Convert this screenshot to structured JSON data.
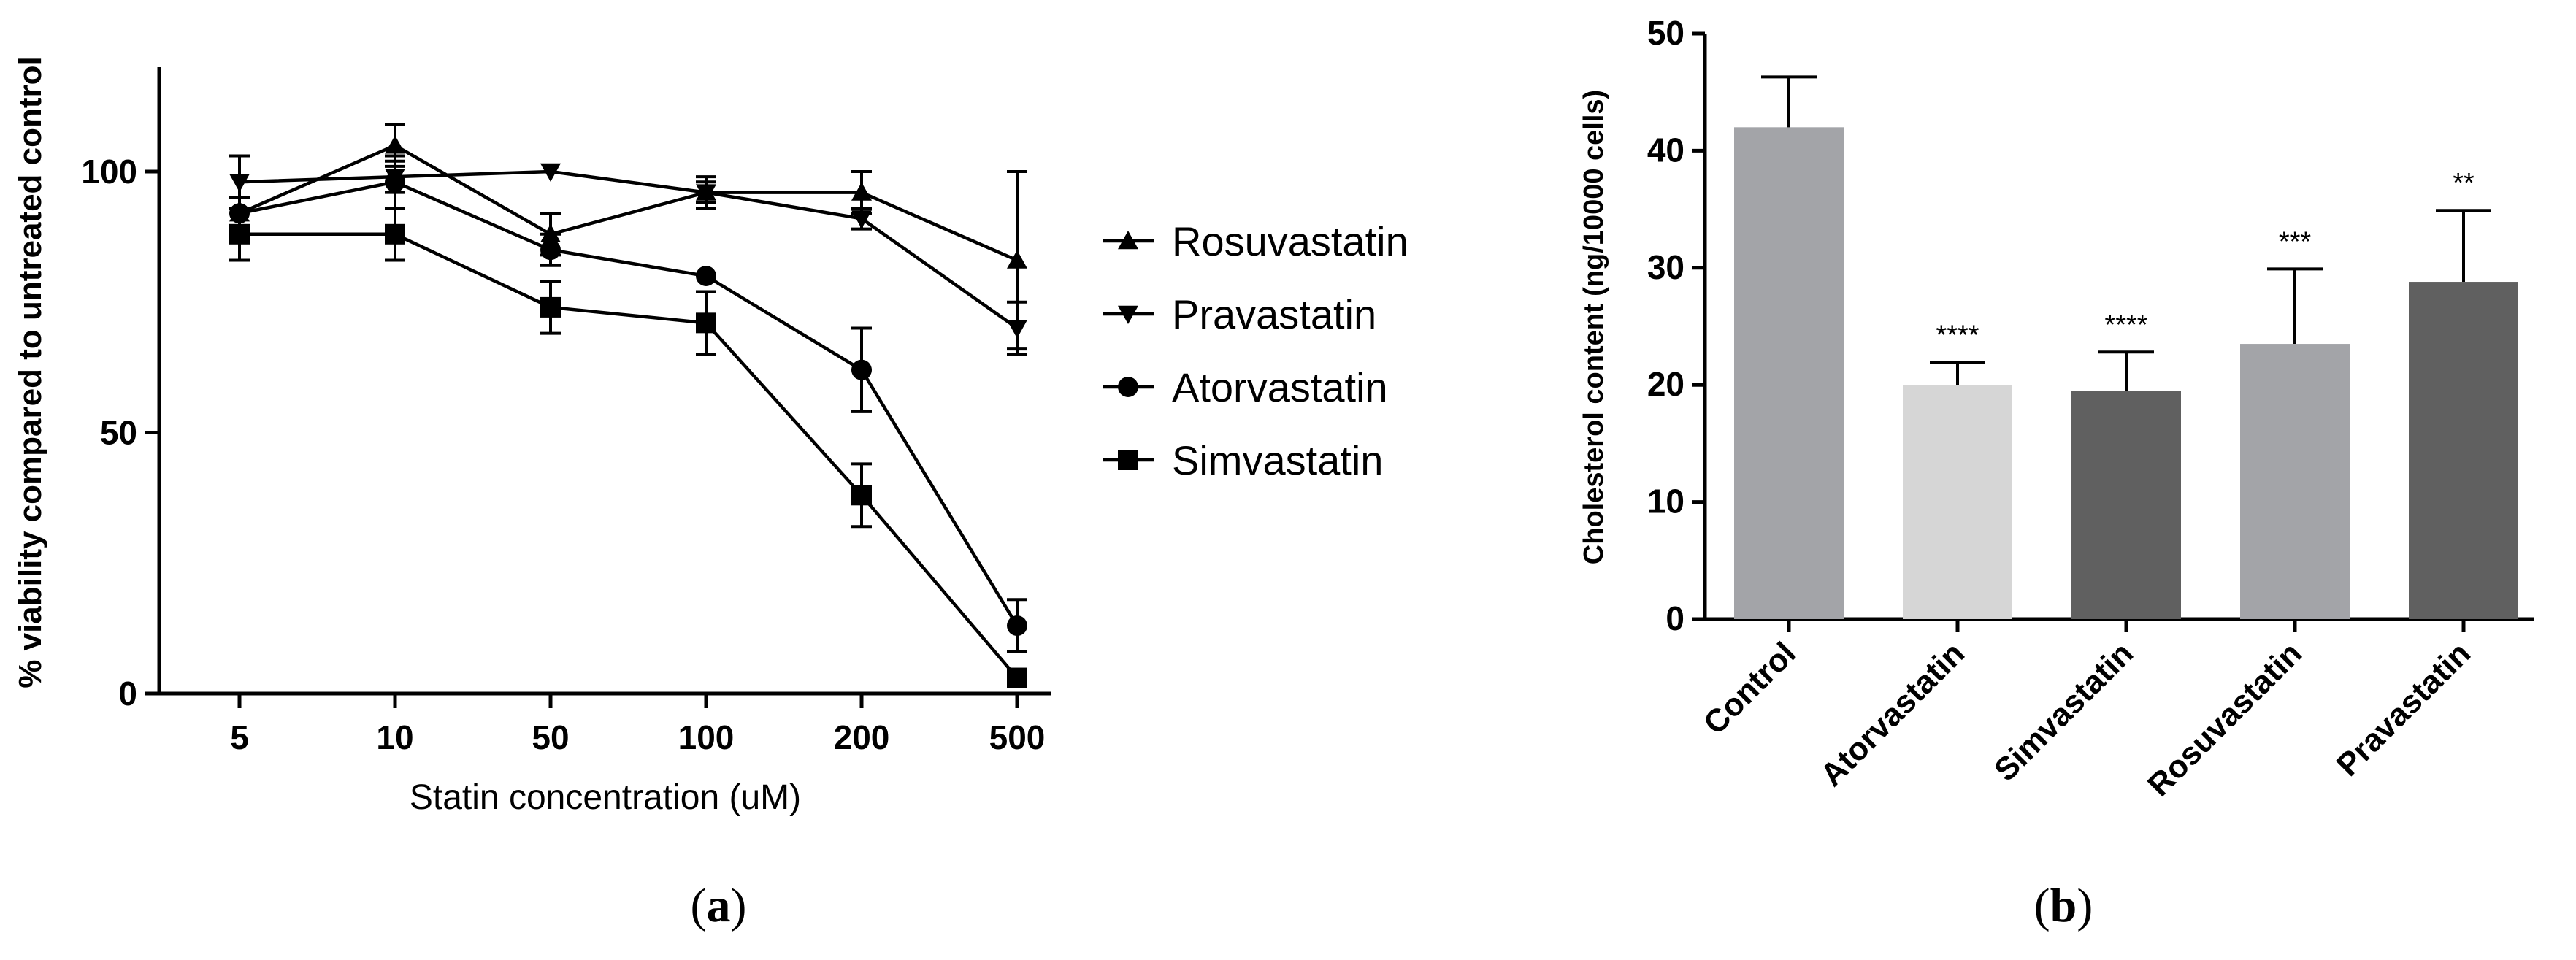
{
  "chart_data": [
    {
      "type": "line",
      "panel": "(a)",
      "panel_letter": "a",
      "xlabel": "Statin concentration (uM)",
      "ylabel": "% viability compared to untreated control",
      "categories": [
        "5",
        "10",
        "50",
        "100",
        "200",
        "500"
      ],
      "ylim": [
        0,
        120
      ],
      "yticks": [
        0,
        50,
        100
      ],
      "legend_position": "right",
      "series": [
        {
          "name": "Rosuvastatin",
          "marker": "triangle-up",
          "values": [
            92,
            105,
            88,
            96,
            96,
            83
          ],
          "errors": [
            0,
            4,
            4,
            3,
            4,
            17
          ]
        },
        {
          "name": "Pravastatin",
          "marker": "triangle-down",
          "values": [
            98,
            99,
            100,
            96,
            91,
            70
          ],
          "errors": [
            5,
            3,
            0,
            2,
            2,
            5
          ]
        },
        {
          "name": "Atorvastatin",
          "marker": "circle",
          "values": [
            92,
            98,
            85,
            80,
            62,
            13
          ],
          "errors": [
            3,
            5,
            3,
            0,
            8,
            5
          ]
        },
        {
          "name": "Simvastatin",
          "marker": "square",
          "values": [
            88,
            88,
            74,
            71,
            38,
            3
          ],
          "errors": [
            5,
            5,
            5,
            6,
            6,
            0
          ]
        }
      ]
    },
    {
      "type": "bar",
      "panel": "(b)",
      "panel_letter": "b",
      "ylabel": "Cholesterol content (ng/10000 cells)",
      "categories": [
        "Control",
        "Atorvastatin",
        "Simvastatin",
        "Rosuvastatin",
        "Pravastatin"
      ],
      "values": [
        42,
        20,
        19.5,
        23.5,
        28.8
      ],
      "errors": [
        4.3,
        1.9,
        3.3,
        6.4,
        6.1
      ],
      "significance": [
        "",
        "****",
        "****",
        "***",
        "**"
      ],
      "colors": [
        "#a3a4a8",
        "#d6d6d6",
        "#606060",
        "#a3a4a8",
        "#606060"
      ],
      "ylim": [
        0,
        50
      ],
      "yticks": [
        0,
        10,
        20,
        30,
        40,
        50
      ]
    }
  ]
}
